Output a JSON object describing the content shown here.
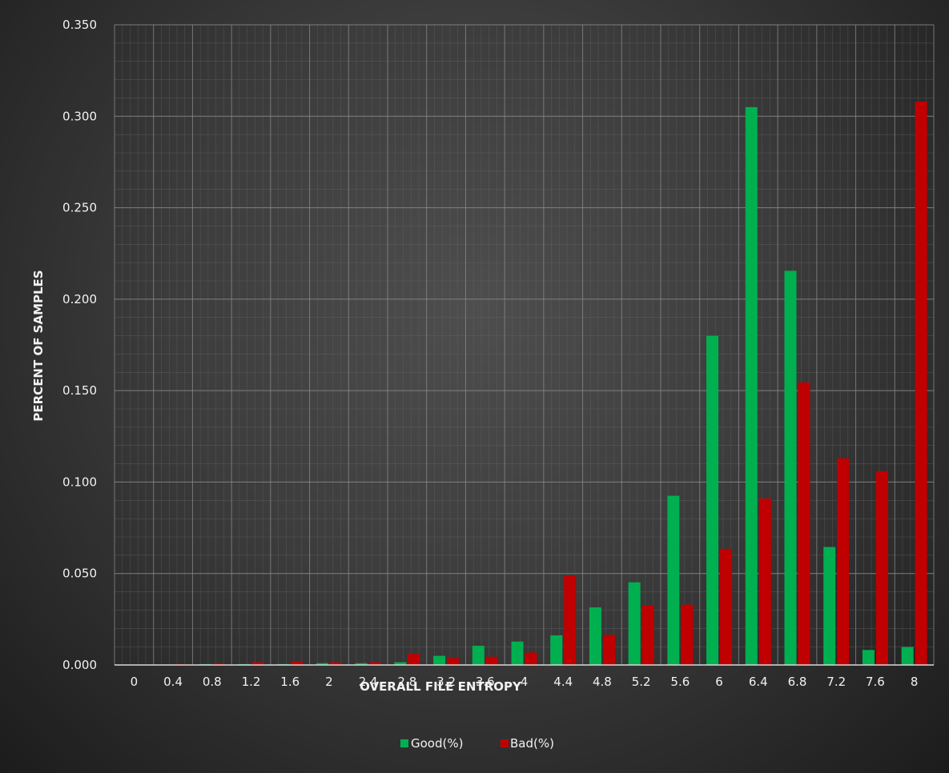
{
  "chart_data": {
    "type": "bar",
    "xlabel": "OVERALL FILE ENTROPY",
    "ylabel": "PERCENT OF SAMPLES",
    "ylim": [
      0,
      0.35
    ],
    "y_ticks": [
      "0.000",
      "0.050",
      "0.100",
      "0.150",
      "0.200",
      "0.250",
      "0.300",
      "0.350"
    ],
    "y_tick_values": [
      0,
      0.05,
      0.1,
      0.15,
      0.2,
      0.25,
      0.3,
      0.35
    ],
    "categories": [
      "0",
      "0.4",
      "0.8",
      "1.2",
      "1.6",
      "2",
      "2.4",
      "2.8",
      "3.2",
      "3.6",
      "4",
      "4.4",
      "4.8",
      "5.2",
      "5.6",
      "6",
      "6.4",
      "6.8",
      "7.2",
      "7.6",
      "8"
    ],
    "series": [
      {
        "name": "Good(%)",
        "color": "#00b050",
        "values": [
          0.0,
          0.0,
          0.0005,
          0.0005,
          0.0005,
          0.001,
          0.001,
          0.0015,
          0.005,
          0.0105,
          0.0128,
          0.0162,
          0.0315,
          0.0452,
          0.0925,
          0.18,
          0.305,
          0.2155,
          0.0645,
          0.0082,
          0.0098
        ]
      },
      {
        "name": "Bad(%)",
        "color": "#c00000",
        "values": [
          0.0,
          0.0005,
          0.001,
          0.0015,
          0.0018,
          0.0015,
          0.0015,
          0.006,
          0.0038,
          0.0045,
          0.0068,
          0.049,
          0.0165,
          0.0325,
          0.033,
          0.0635,
          0.091,
          0.1545,
          0.113,
          0.106,
          0.308
        ]
      }
    ],
    "grid": "major and minor",
    "legend": "bottom-center"
  }
}
